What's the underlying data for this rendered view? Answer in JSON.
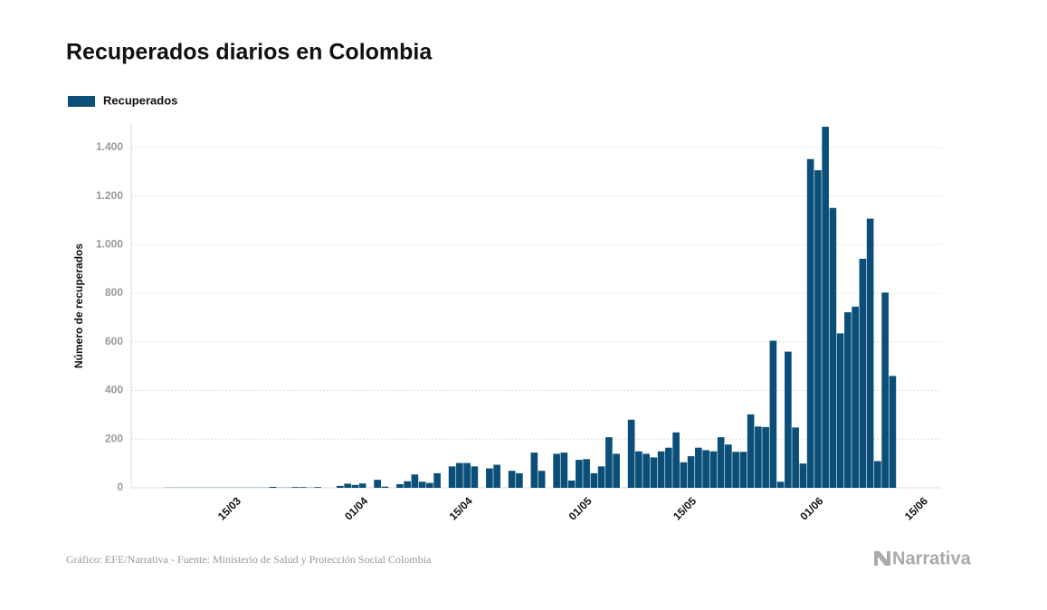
{
  "chart_data": {
    "type": "bar",
    "title": "Recuperados diarios en Colombia",
    "y_label": "Número de recuperados",
    "source": "Gráfico: EFE/Narrativa - Fuente: Ministerio de Salud y Protección Social Colombia",
    "brand": "Narrativa",
    "categories": [
      null,
      null,
      null,
      null,
      null,
      null,
      null,
      null,
      null,
      null,
      null,
      null,
      null,
      null,
      "15/03",
      null,
      null,
      null,
      null,
      null,
      null,
      null,
      null,
      null,
      null,
      null,
      null,
      null,
      null,
      null,
      null,
      "01/04",
      null,
      null,
      null,
      null,
      null,
      null,
      null,
      null,
      null,
      null,
      null,
      null,
      null,
      "15/04",
      null,
      null,
      null,
      null,
      null,
      null,
      null,
      null,
      null,
      null,
      null,
      null,
      null,
      null,
      null,
      "01/05",
      null,
      null,
      null,
      null,
      null,
      null,
      null,
      null,
      null,
      null,
      null,
      null,
      null,
      "15/05",
      null,
      null,
      null,
      null,
      null,
      null,
      null,
      null,
      null,
      null,
      null,
      null,
      null,
      null,
      null,
      null,
      "01/06",
      null,
      null,
      null,
      null,
      null,
      null,
      null,
      null,
      null,
      null,
      null,
      null,
      null,
      "15/06",
      null
    ],
    "series": [
      {
        "name": "Recuperados",
        "color": "#0b4f79",
        "values": [
          0,
          0,
          0,
          0,
          1,
          1,
          1,
          1,
          1,
          1,
          1,
          1,
          1,
          1,
          1,
          1,
          1,
          1,
          4,
          1,
          1,
          3,
          3,
          1,
          3,
          0,
          0,
          8,
          17,
          12,
          18,
          0,
          33,
          5,
          0,
          15,
          27,
          55,
          25,
          20,
          60,
          0,
          88,
          102,
          102,
          88,
          0,
          80,
          95,
          0,
          70,
          60,
          0,
          145,
          70,
          0,
          140,
          145,
          30,
          115,
          118,
          60,
          88,
          208,
          140,
          0,
          280,
          150,
          140,
          125,
          150,
          165,
          228,
          105,
          130,
          165,
          155,
          150,
          208,
          178,
          148,
          148,
          302,
          252,
          250,
          605,
          25,
          560,
          248,
          100,
          1352,
          1306,
          1485,
          1151,
          635,
          722,
          745,
          942,
          1107,
          110,
          803,
          460,
          0,
          0,
          0,
          0,
          0,
          0
        ]
      }
    ],
    "ylim": [
      0,
      1500
    ],
    "yticks": [
      0,
      200,
      400,
      600,
      800,
      {
        "value": 1000,
        "label": "1.000"
      },
      {
        "value": 1200,
        "label": "1.200"
      },
      {
        "value": 1400,
        "label": "1.400"
      }
    ],
    "grid": true,
    "legend": "top-left"
  }
}
